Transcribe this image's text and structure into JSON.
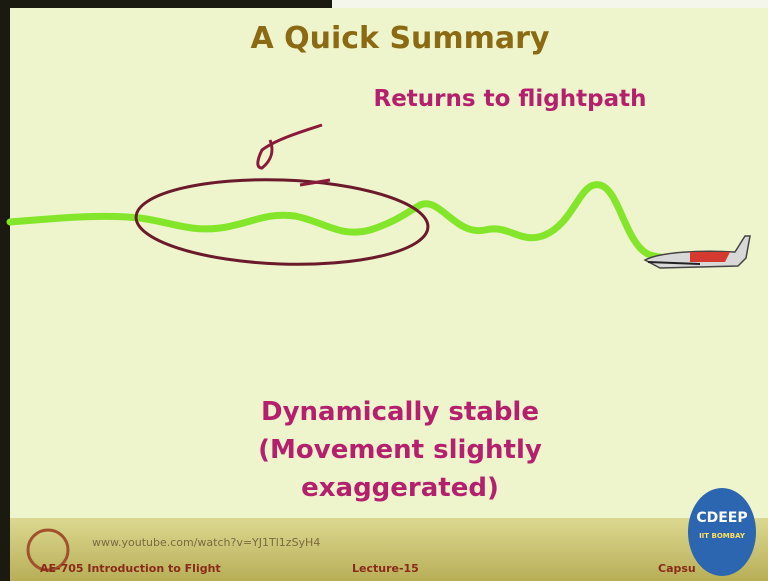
{
  "slide": {
    "title": "A Quick Summary",
    "annotation": "Returns to flightpath",
    "caption": [
      "Dynamically stable",
      "(Movement slightly",
      "exaggerated)"
    ]
  },
  "footer": {
    "url": "www.youtube.com/watch?v=YJ1Tl1zSyH4",
    "course": "AE-705 Introduction to Flight",
    "lecture": "Lecture-15",
    "section": "Capsu"
  },
  "logo": {
    "name": "CDEEP",
    "sub": "IIT BOMBAY"
  }
}
